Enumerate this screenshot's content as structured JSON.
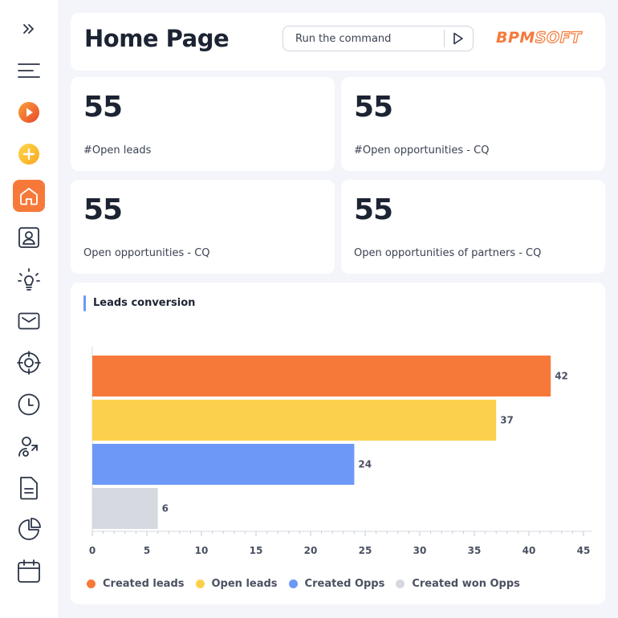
{
  "sidebar": {
    "items": [
      {
        "name": "expand-icon"
      },
      {
        "name": "menu-icon"
      },
      {
        "name": "play-icon"
      },
      {
        "name": "add-icon"
      },
      {
        "name": "home-icon"
      },
      {
        "name": "contacts-icon"
      },
      {
        "name": "lightbulb-icon"
      },
      {
        "name": "mail-icon"
      },
      {
        "name": "target-icon"
      },
      {
        "name": "clock-icon"
      },
      {
        "name": "user-sync-icon"
      },
      {
        "name": "document-icon"
      },
      {
        "name": "pie-chart-icon"
      },
      {
        "name": "calendar-icon"
      }
    ],
    "active": "home-icon"
  },
  "header": {
    "title": "Home Page",
    "command_placeholder": "Run the command",
    "logo_part1": "BPM",
    "logo_part2": "SOFT"
  },
  "kpis": [
    {
      "value": "55",
      "label": "#Open leads"
    },
    {
      "value": "55",
      "label": "#Open opportunities - CQ"
    },
    {
      "value": "55",
      "label": "Open opportunities - CQ"
    },
    {
      "value": "55",
      "label": "Open opportunities of partners - CQ"
    }
  ],
  "colors": {
    "accent": "#f7793a",
    "created_leads": "#f7793a",
    "open_leads": "#fbd04c",
    "created_opps": "#6d98f7",
    "created_won_opps": "#d6d9e0"
  },
  "chart_data": {
    "type": "bar",
    "orientation": "horizontal",
    "title": "Leads conversion",
    "categories": [
      "Created leads",
      "Open leads",
      "Created Opps",
      "Created won Opps"
    ],
    "values": [
      42,
      37,
      24,
      6
    ],
    "xlim": [
      0,
      45
    ],
    "xticks": [
      0,
      5,
      10,
      15,
      20,
      25,
      30,
      35,
      40,
      45
    ],
    "legend": "bottom",
    "grid": false
  }
}
